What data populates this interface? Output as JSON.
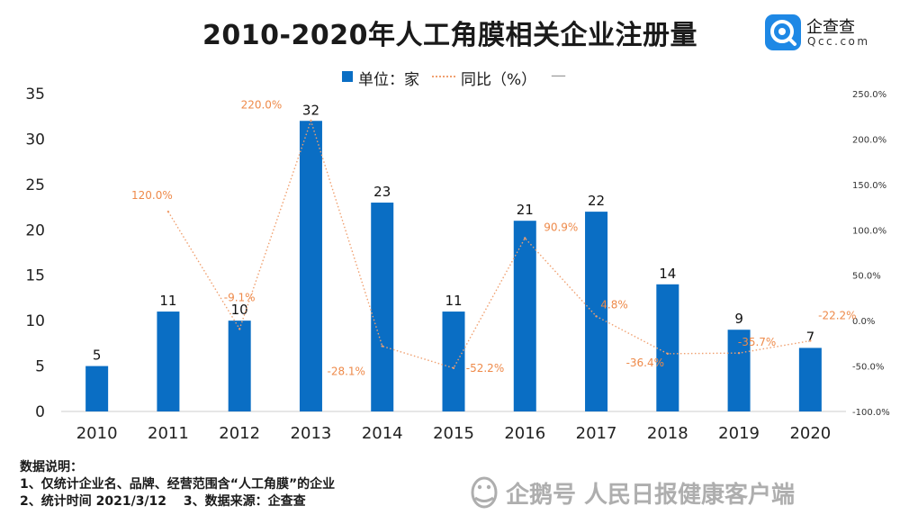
{
  "header": {
    "title": "2010-2020年人工角膜相关企业注册量"
  },
  "logo": {
    "name_cn": "企查查",
    "name_en": "Qcc.com",
    "color": "#1e88e5"
  },
  "legend": {
    "bar_label": "单位：家",
    "line_label": "同比（%）",
    "dash": "—"
  },
  "chart_data": {
    "type": "bar",
    "categories": [
      "2010",
      "2011",
      "2012",
      "2013",
      "2014",
      "2015",
      "2016",
      "2017",
      "2018",
      "2019",
      "2020"
    ],
    "series": [
      {
        "name": "单位：家",
        "type": "bar",
        "color": "#0a6ec4",
        "values": [
          5,
          11,
          10,
          32,
          23,
          11,
          21,
          22,
          14,
          9,
          7
        ],
        "labels": [
          "5",
          "11",
          "10",
          "32",
          "23",
          "11",
          "21",
          "22",
          "14",
          "9",
          "7"
        ]
      },
      {
        "name": "同比（%）",
        "type": "line",
        "color": "#f0a070",
        "values": [
          null,
          120.0,
          -9.1,
          220.0,
          -28.1,
          -52.2,
          90.9,
          4.8,
          -36.4,
          -35.7,
          -22.2
        ],
        "labels": [
          "",
          "120.0%",
          "-9.1%",
          "220.0%",
          "-28.1%",
          "-52.2%",
          "90.9%",
          "4.8%",
          "-36.4%",
          "-35.7%",
          "-22.2%"
        ]
      }
    ],
    "y_left": {
      "ylim": [
        0,
        35
      ],
      "ticks": [
        0,
        5,
        10,
        15,
        20,
        25,
        30,
        35
      ],
      "tick_labels": [
        "0",
        "5",
        "10",
        "15",
        "20",
        "25",
        "30",
        "35"
      ]
    },
    "y_right": {
      "ylim": [
        -100,
        250
      ],
      "ticks": [
        -100,
        -50,
        0,
        50,
        100,
        150,
        200,
        250
      ],
      "tick_labels": [
        "-100.0%",
        "-50.0%",
        "0.0%",
        "50.0%",
        "100.0%",
        "150.0%",
        "200.0%",
        "250.0%"
      ]
    },
    "grid": false,
    "legend_position": "top-center"
  },
  "notes": {
    "heading": "数据说明：",
    "line1": "1、仅统计企业名、品牌、经营范围含“人工角膜”的企业",
    "line2": "2、统计时间 2021/3/12　 3、数据来源：企查查"
  },
  "watermark": {
    "text": "企鹅号 人民日报健康客户端"
  }
}
